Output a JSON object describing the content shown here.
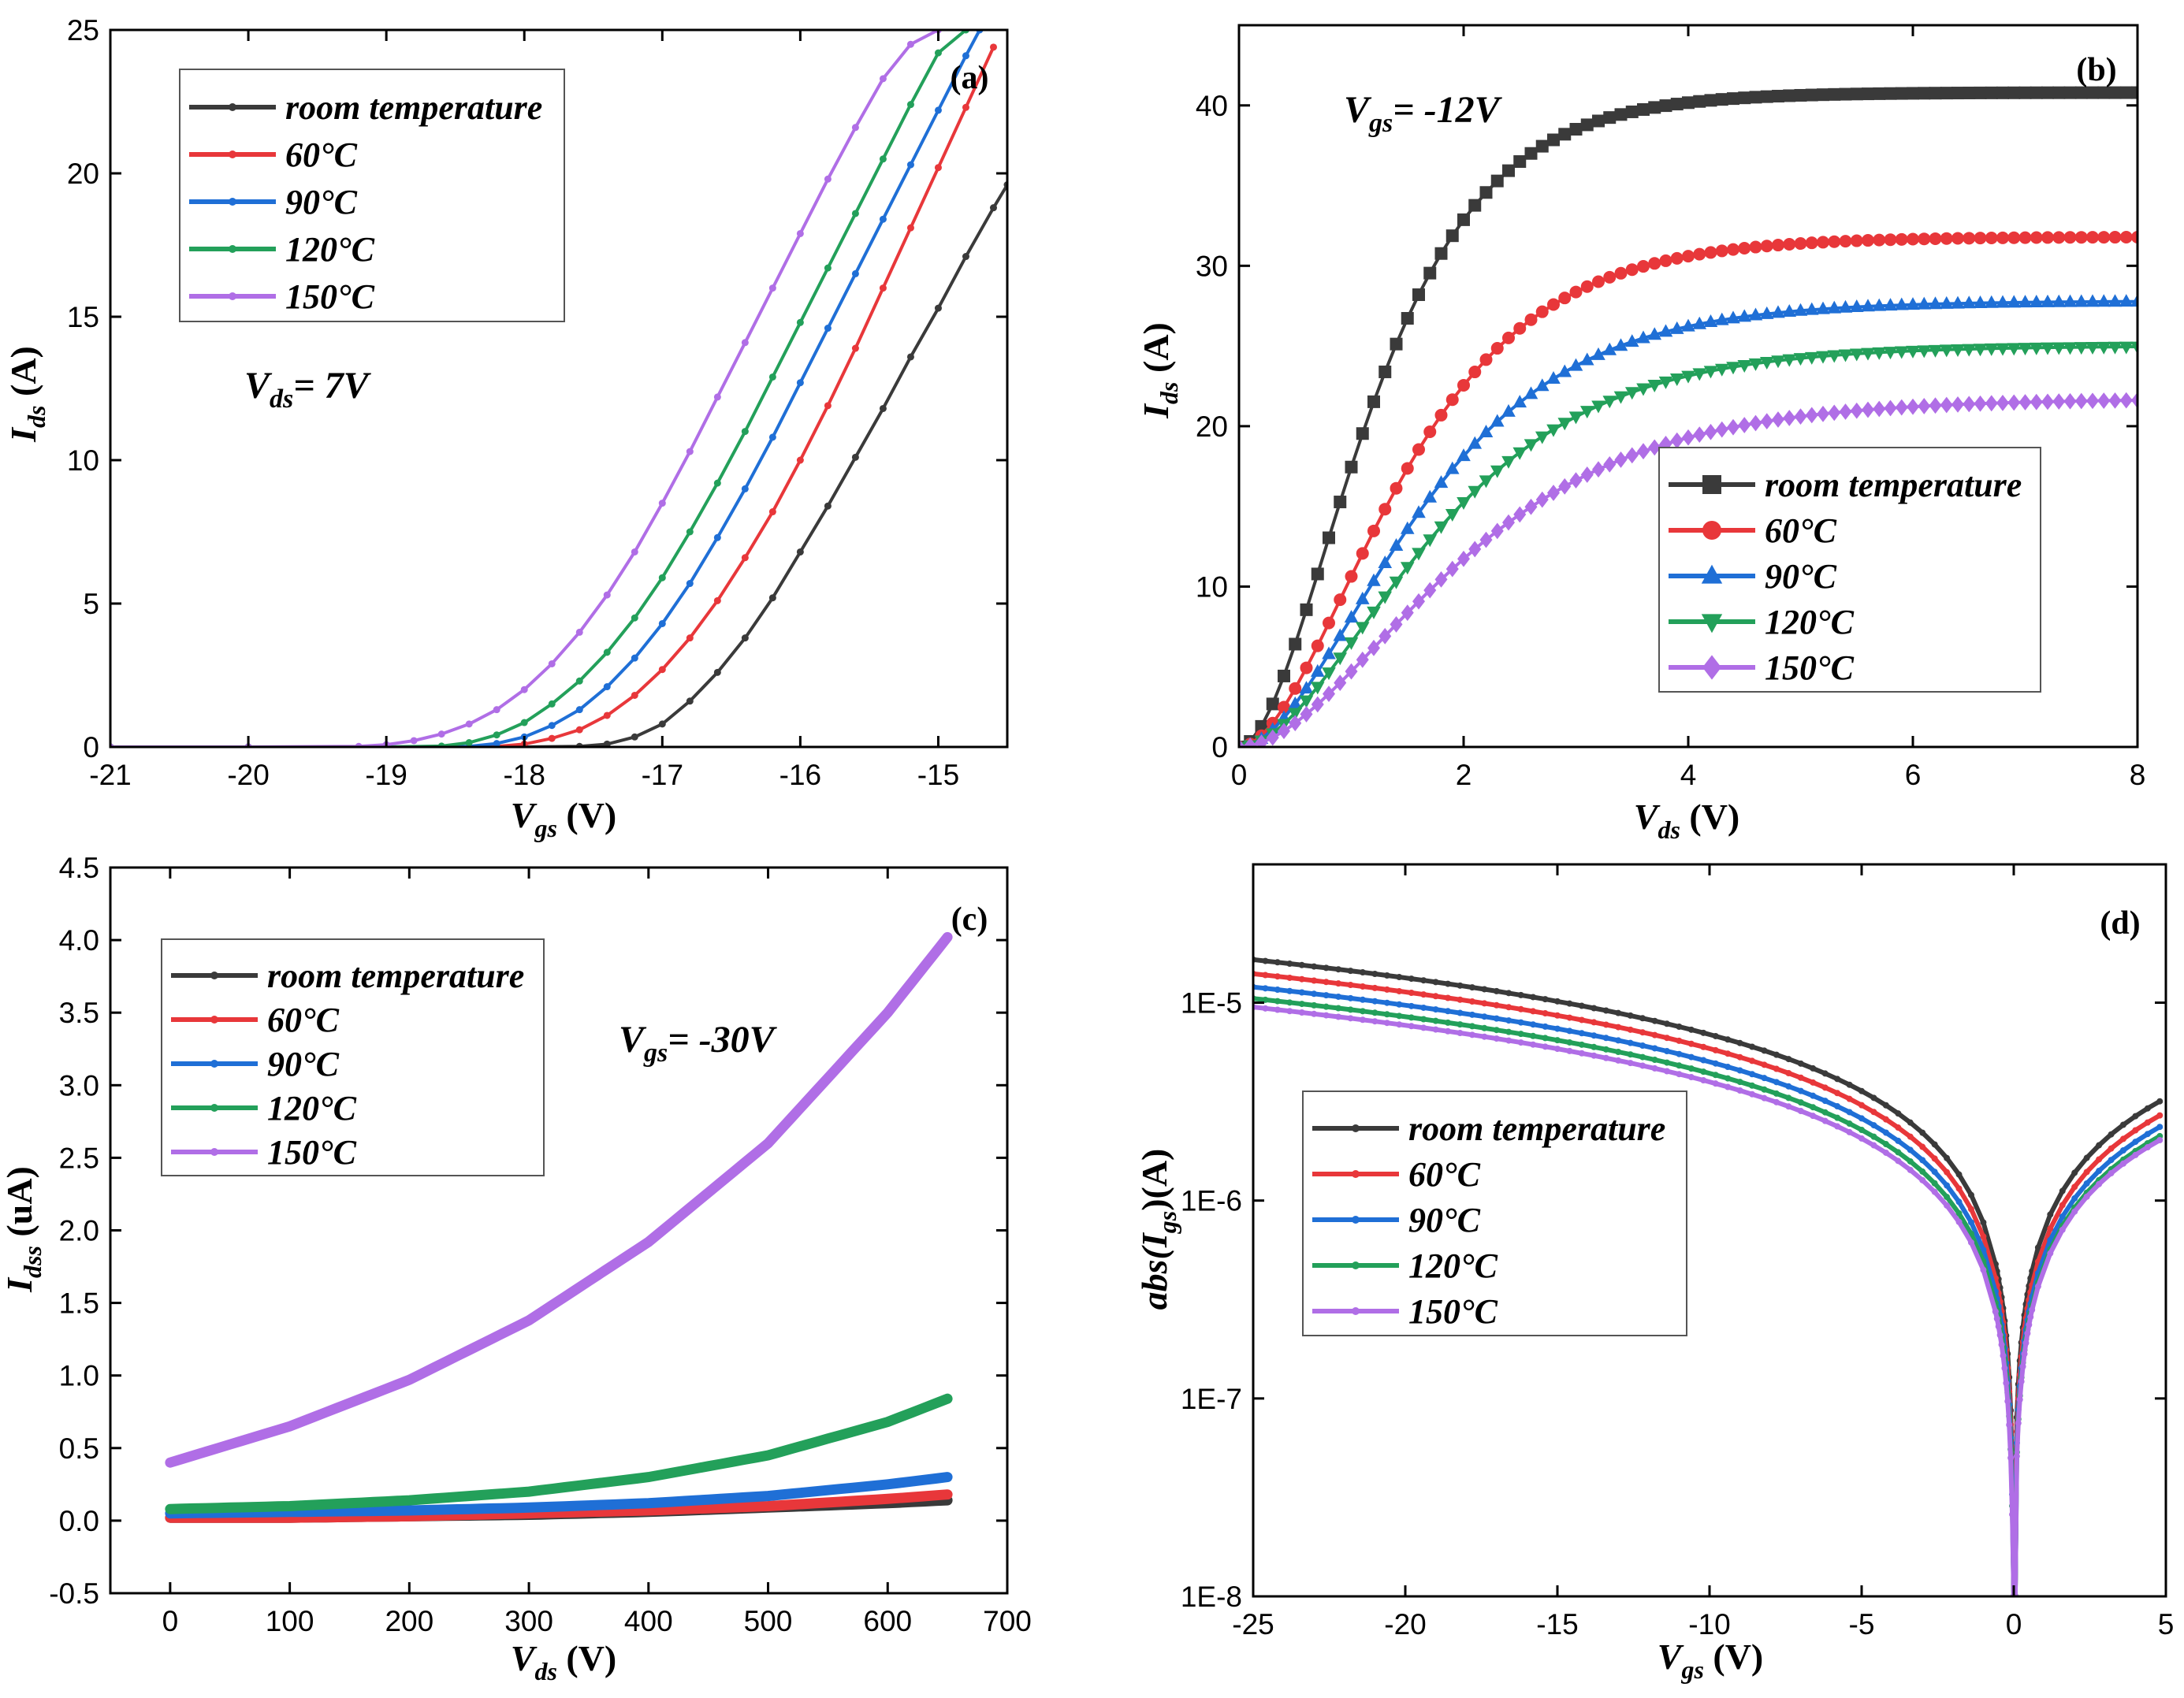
{
  "chart_data": [
    {
      "id": "a",
      "type": "line",
      "panel_label": "(a)",
      "xlabel": {
        "main": "V",
        "sub": "gs",
        "unit": " (V)"
      },
      "ylabel": {
        "main": "I",
        "sub": "ds",
        "unit": " (A)"
      },
      "xlim": [
        -21,
        -14.5
      ],
      "ylim": [
        0,
        25
      ],
      "xticks": [
        -21,
        -20,
        -19,
        -18,
        -17,
        -16,
        -15
      ],
      "yticks": [
        0,
        5,
        10,
        15,
        20,
        25
      ],
      "annotation": {
        "main": "V",
        "sub": "ds",
        "rest": "= 7V"
      },
      "legend_position": "top-left",
      "marker": "small",
      "series": [
        {
          "name": "room temperature",
          "color": "#3a3a3a",
          "x": [
            -21,
            -20,
            -19,
            -18,
            -17.6,
            -17.4,
            -17.2,
            -17.0,
            -16.8,
            -16.6,
            -16.4,
            -16.2,
            -16.0,
            -15.8,
            -15.6,
            -15.4,
            -15.2,
            -15.0,
            -14.8,
            -14.6,
            -14.5
          ],
          "y": [
            0,
            0,
            0,
            0,
            0.02,
            0.1,
            0.35,
            0.8,
            1.6,
            2.6,
            3.8,
            5.2,
            6.8,
            8.4,
            10.1,
            11.8,
            13.6,
            15.3,
            17.1,
            18.8,
            19.6
          ]
        },
        {
          "name": "60°C",
          "color": "#e8373a",
          "x": [
            -21,
            -20,
            -19,
            -18.2,
            -18.0,
            -17.8,
            -17.6,
            -17.4,
            -17.2,
            -17.0,
            -16.8,
            -16.6,
            -16.4,
            -16.2,
            -16.0,
            -15.8,
            -15.6,
            -15.4,
            -15.2,
            -15.0,
            -14.8,
            -14.6
          ],
          "y": [
            0,
            0,
            0,
            0.02,
            0.1,
            0.3,
            0.6,
            1.1,
            1.8,
            2.7,
            3.8,
            5.1,
            6.6,
            8.2,
            10.0,
            11.9,
            13.9,
            16.0,
            18.1,
            20.2,
            22.3,
            24.4
          ]
        },
        {
          "name": "90°C",
          "color": "#1f6fd6",
          "x": [
            -21,
            -20,
            -19,
            -18.4,
            -18.2,
            -18.0,
            -17.8,
            -17.6,
            -17.4,
            -17.2,
            -17.0,
            -16.8,
            -16.6,
            -16.4,
            -16.2,
            -16.0,
            -15.8,
            -15.6,
            -15.4,
            -15.2,
            -15.0,
            -14.8,
            -14.7
          ],
          "y": [
            0,
            0,
            0,
            0.02,
            0.12,
            0.35,
            0.75,
            1.3,
            2.1,
            3.1,
            4.3,
            5.7,
            7.3,
            9.0,
            10.8,
            12.7,
            14.6,
            16.5,
            18.4,
            20.3,
            22.2,
            24.1,
            25
          ]
        },
        {
          "name": "120°C",
          "color": "#23a05a",
          "x": [
            -21,
            -20,
            -19,
            -18.6,
            -18.4,
            -18.2,
            -18.0,
            -17.8,
            -17.6,
            -17.4,
            -17.2,
            -17.0,
            -16.8,
            -16.6,
            -16.4,
            -16.2,
            -16.0,
            -15.8,
            -15.6,
            -15.4,
            -15.2,
            -15.0,
            -14.8
          ],
          "y": [
            0,
            0,
            0,
            0.03,
            0.15,
            0.42,
            0.85,
            1.5,
            2.3,
            3.3,
            4.5,
            5.9,
            7.5,
            9.2,
            11.0,
            12.9,
            14.8,
            16.7,
            18.6,
            20.5,
            22.4,
            24.2,
            25
          ]
        },
        {
          "name": "150°C",
          "color": "#b06ee6",
          "x": [
            -21,
            -20,
            -19.2,
            -19.0,
            -18.8,
            -18.6,
            -18.4,
            -18.2,
            -18.0,
            -17.8,
            -17.6,
            -17.4,
            -17.2,
            -17.0,
            -16.8,
            -16.6,
            -16.4,
            -16.2,
            -16.0,
            -15.8,
            -15.6,
            -15.4,
            -15.2,
            -15.0
          ],
          "y": [
            0,
            0,
            0.02,
            0.08,
            0.22,
            0.45,
            0.8,
            1.3,
            2.0,
            2.9,
            4.0,
            5.3,
            6.8,
            8.5,
            10.3,
            12.2,
            14.1,
            16.0,
            17.9,
            19.8,
            21.6,
            23.3,
            24.5,
            25
          ]
        }
      ]
    },
    {
      "id": "b",
      "type": "line",
      "panel_label": "(b)",
      "xlabel": {
        "main": "V",
        "sub": "ds",
        "unit": " (V)"
      },
      "ylabel": {
        "main": "I",
        "sub": "ds",
        "unit": " (A)"
      },
      "xlim": [
        0,
        8
      ],
      "ylim": [
        0,
        45
      ],
      "xticks": [
        0,
        2,
        4,
        6,
        8
      ],
      "yticks": [
        0,
        10,
        20,
        30,
        40
      ],
      "annotation": {
        "main": "V",
        "sub": "gs",
        "rest": "= -12V"
      },
      "legend_position": "center-right",
      "marker": "large",
      "series": [
        {
          "name": "room temperature",
          "color": "#3a3a3a",
          "marker": "square",
          "Isat": 40.8,
          "k": 0.75,
          "exp": 2.1
        },
        {
          "name": "60°C",
          "color": "#e8373a",
          "marker": "circle",
          "Isat": 31.8,
          "k": 0.62,
          "exp": 2.1
        },
        {
          "name": "90°C",
          "color": "#1f6fd6",
          "marker": "triangle-up",
          "Isat": 27.8,
          "k": 0.56,
          "exp": 2.1
        },
        {
          "name": "120°C",
          "color": "#23a05a",
          "marker": "triangle-down",
          "Isat": 25.0,
          "k": 0.52,
          "exp": 2.1
        },
        {
          "name": "150°C",
          "color": "#b06ee6",
          "marker": "diamond",
          "Isat": 21.7,
          "k": 0.46,
          "exp": 2.1
        }
      ]
    },
    {
      "id": "c",
      "type": "line",
      "panel_label": "(c)",
      "xlabel": {
        "main": "V",
        "sub": "ds",
        "unit": " (V)"
      },
      "ylabel": {
        "main": "I",
        "sub": "dss",
        "unit": " (uA)"
      },
      "xlim": [
        -50,
        700
      ],
      "ylim": [
        -0.5,
        4.5
      ],
      "xticks": [
        0,
        100,
        200,
        300,
        400,
        500,
        600,
        700
      ],
      "yticks": [
        -0.5,
        0.0,
        0.5,
        1.0,
        1.5,
        2.0,
        2.5,
        3.0,
        3.5,
        4.0,
        4.5
      ],
      "yticks_labels": [
        "-0.5",
        "0.0",
        "0.5",
        "1.0",
        "1.5",
        "2.0",
        "2.5",
        "3.0",
        "3.5",
        "4.0",
        "4.5"
      ],
      "annotation": {
        "main": "V",
        "sub": "gs",
        "rest": "= -30V"
      },
      "legend_position": "top-left",
      "marker": "dense",
      "series": [
        {
          "name": "room temperature",
          "color": "#3a3a3a",
          "x": [
            0,
            100,
            200,
            300,
            400,
            500,
            600,
            650
          ],
          "y": [
            0.02,
            0.02,
            0.03,
            0.04,
            0.06,
            0.09,
            0.12,
            0.14
          ]
        },
        {
          "name": "60°C",
          "color": "#e8373a",
          "x": [
            0,
            100,
            200,
            300,
            400,
            500,
            600,
            650
          ],
          "y": [
            0.02,
            0.02,
            0.03,
            0.05,
            0.07,
            0.1,
            0.15,
            0.18
          ]
        },
        {
          "name": "90°C",
          "color": "#1f6fd6",
          "x": [
            0,
            100,
            200,
            300,
            400,
            500,
            600,
            650
          ],
          "y": [
            0.05,
            0.06,
            0.07,
            0.09,
            0.12,
            0.17,
            0.25,
            0.3
          ]
        },
        {
          "name": "120°C",
          "color": "#23a05a",
          "x": [
            0,
            100,
            200,
            300,
            400,
            500,
            600,
            650
          ],
          "y": [
            0.08,
            0.1,
            0.14,
            0.2,
            0.3,
            0.45,
            0.68,
            0.84
          ]
        },
        {
          "name": "150°C",
          "color": "#b06ee6",
          "x": [
            0,
            100,
            200,
            300,
            400,
            500,
            600,
            650
          ],
          "y": [
            0.4,
            0.65,
            0.97,
            1.38,
            1.92,
            2.6,
            3.5,
            4.02
          ]
        }
      ]
    },
    {
      "id": "d",
      "type": "line",
      "panel_label": "(d)",
      "xlabel": {
        "main": "V",
        "sub": "gs",
        "unit": " (V)"
      },
      "ylabel": {
        "pre": "abs(",
        "main": "I",
        "sub": "gs",
        "unit": ")(A)"
      },
      "yscale": "log",
      "xlim": [
        -25,
        5
      ],
      "ylim": [
        1e-08,
        5e-05
      ],
      "xticks": [
        -25,
        -20,
        -15,
        -10,
        -5,
        0,
        5
      ],
      "yticks": [
        1e-08,
        1e-07,
        1e-06,
        1e-05
      ],
      "yticks_labels": [
        "1E-8",
        "1E-7",
        "1E-6",
        "1E-5"
      ],
      "legend_position": "center-left",
      "marker": "dense",
      "series": [
        {
          "name": "room temperature",
          "color": "#3a3a3a",
          "at_minus25": 1.65e-05,
          "at_plus5": 3.3e-06
        },
        {
          "name": "60°C",
          "color": "#e8373a",
          "at_minus25": 1.4e-05,
          "at_plus5": 2.8e-06
        },
        {
          "name": "90°C",
          "color": "#1f6fd6",
          "at_minus25": 1.2e-05,
          "at_plus5": 2.45e-06
        },
        {
          "name": "120°C",
          "color": "#23a05a",
          "at_minus25": 1.05e-05,
          "at_plus5": 2.2e-06
        },
        {
          "name": "150°C",
          "color": "#b06ee6",
          "at_minus25": 9.5e-06,
          "at_plus5": 2.1e-06
        }
      ]
    }
  ]
}
